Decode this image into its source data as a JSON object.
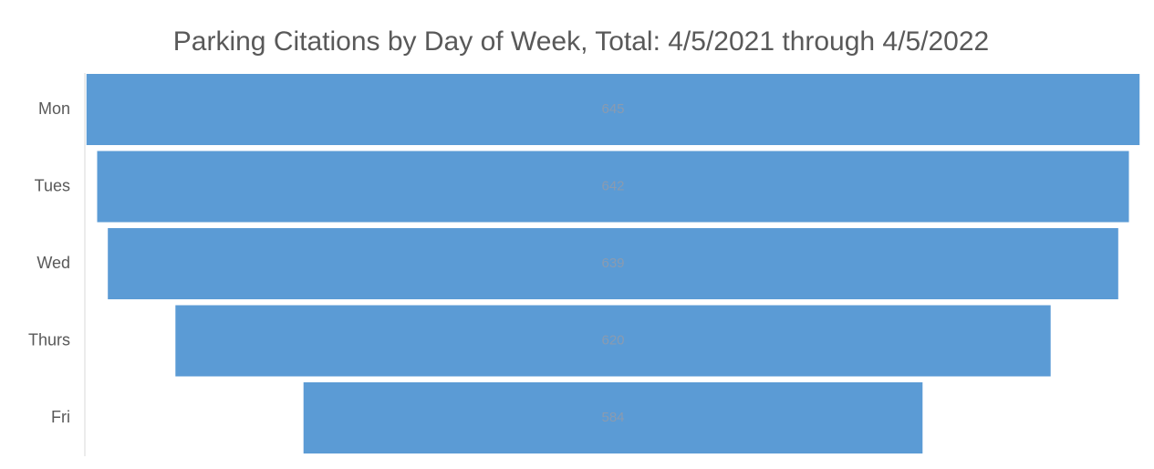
{
  "chart_data": {
    "type": "funnel",
    "title": "Parking Citations by Day of Week, Total: 4/5/2021 through 4/5/2022",
    "categories": [
      "Mon",
      "Tues",
      "Wed",
      "Thurs",
      "Fri"
    ],
    "values": [
      645,
      642,
      639,
      620,
      584
    ],
    "color": "#5b9bd5"
  }
}
